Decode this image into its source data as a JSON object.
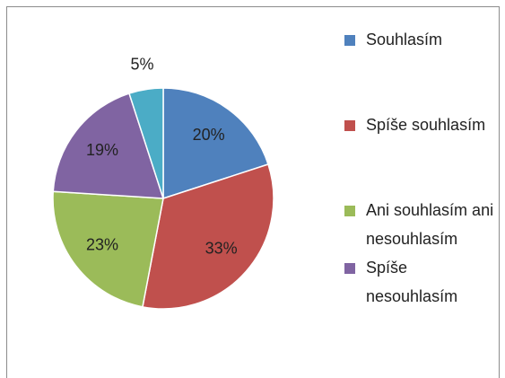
{
  "chart_data": {
    "type": "pie",
    "categories": [
      "Souhlasím",
      "Spíše souhlasím",
      "Ani souhlasím ani nesouhlasím",
      "Spíše nesouhlasím",
      null
    ],
    "values": [
      20,
      33,
      23,
      19,
      5
    ],
    "value_labels": [
      "20%",
      "33%",
      "23%",
      "19%",
      "5%"
    ],
    "colors": [
      "#4f81bd",
      "#c0504d",
      "#9bbb59",
      "#8064a2",
      "#4bacc6"
    ],
    "legend": "right"
  }
}
